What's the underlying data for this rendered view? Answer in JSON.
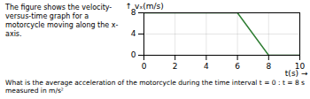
{
  "chart_data": {
    "type": "line",
    "title": "The figure shows the velocity-versus-time graph for a motorcycle moving along the x-axis.",
    "annotations": [
      "What is the average acceleration of the motorcycle during the time interval t = 0 : t = 8 s measured in m/s²"
    ],
    "xlabel": "t(s)",
    "ylabel": "vₓ(m/s)",
    "x": [
      0,
      6,
      8,
      10
    ],
    "values": [
      8,
      8,
      0,
      0
    ],
    "color": "#2e7d32",
    "xlim": [
      0,
      10
    ],
    "ylim": [
      0,
      8
    ],
    "xticks": [
      0,
      2,
      4,
      6,
      8,
      10
    ],
    "yticks": [
      0,
      4,
      8
    ],
    "grid": true
  }
}
